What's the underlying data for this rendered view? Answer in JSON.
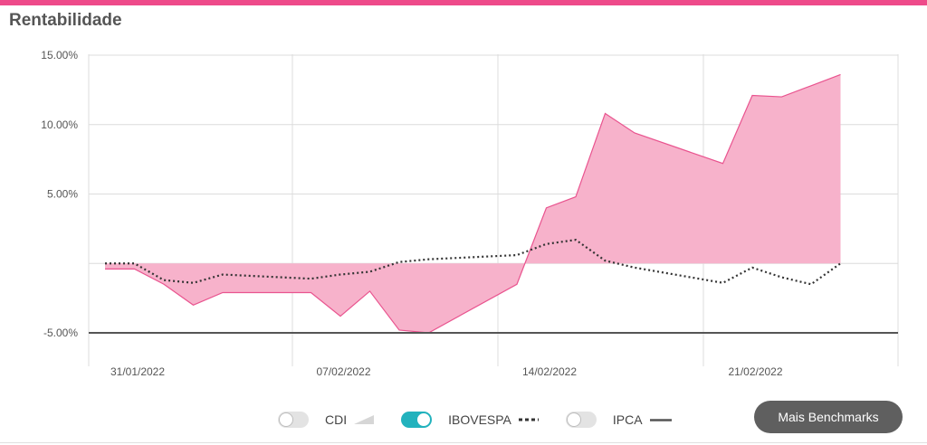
{
  "header": {
    "title": "Rentabilidade"
  },
  "colors": {
    "accent": "#ee4a8a",
    "fund_fill": "#f7b2cb",
    "fund_line": "#e9548f",
    "grid": "#dcdcdc",
    "ibovespa": "#333333",
    "ipca": "#555555",
    "toggle_on": "#22b2bd",
    "button_bg": "#5f5f5f"
  },
  "chart_data": {
    "type": "area",
    "title": "",
    "xlabel": "",
    "ylabel": "",
    "ylim": [
      -5,
      15
    ],
    "yticks": [
      -5,
      5,
      10,
      15
    ],
    "ytick_labels": [
      "-5.00%",
      "5.00%",
      "10.00%",
      "15.00%"
    ],
    "x_ticks": [
      "31/01/2022",
      "07/02/2022",
      "14/02/2022",
      "21/02/2022"
    ],
    "grid": true,
    "x": [
      "31/01/2022",
      "01/02/2022",
      "02/02/2022",
      "03/02/2022",
      "04/02/2022",
      "07/02/2022",
      "08/02/2022",
      "09/02/2022",
      "10/02/2022",
      "11/02/2022",
      "14/02/2022",
      "15/02/2022",
      "16/02/2022",
      "17/02/2022",
      "18/02/2022",
      "21/02/2022",
      "22/02/2022",
      "23/02/2022",
      "24/02/2022",
      "25/02/2022"
    ],
    "series": [
      {
        "values": [
          -0.4,
          -0.4,
          -1.5,
          -3.0,
          -2.1,
          -2.1,
          -3.8,
          -2.0,
          -4.8,
          -5.0,
          -1.5,
          4.0,
          4.8,
          10.8,
          9.4,
          7.2,
          12.1,
          12.0,
          12.8,
          13.6
        ]
      },
      {
        "name": "IBOVESPA",
        "values": [
          0.0,
          0.0,
          -1.2,
          -1.4,
          -0.8,
          -1.1,
          -0.8,
          -0.6,
          0.1,
          0.3,
          0.6,
          1.4,
          1.7,
          0.2,
          -0.3,
          -1.4,
          -0.3,
          -1.0,
          -1.5,
          0.0
        ]
      },
      {
        "name": "IPCA",
        "values": [
          -5.0,
          -5.0,
          -5.0,
          -5.0,
          -5.0,
          -5.0,
          -5.0,
          -5.0,
          -5.0,
          -5.0,
          -5.0,
          -5.0,
          -5.0,
          -5.0,
          -5.0,
          -5.0,
          -5.0,
          -5.0,
          -5.0,
          -5.0
        ]
      }
    ]
  },
  "legend": {
    "cdi": {
      "label": "CDI",
      "enabled": false
    },
    "ibovespa": {
      "label": "IBOVESPA",
      "enabled": true
    },
    "ipca": {
      "label": "IPCA",
      "enabled": false
    }
  },
  "actions": {
    "mais_benchmarks_label": "Mais Benchmarks"
  }
}
